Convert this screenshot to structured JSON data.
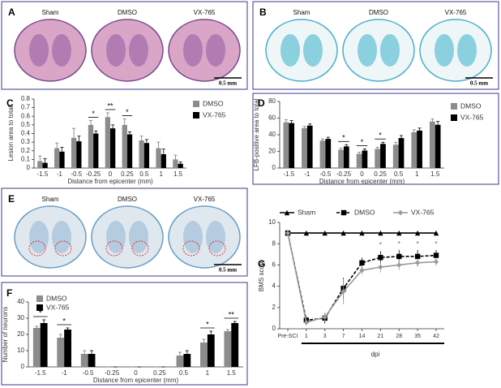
{
  "image_panels": [
    {
      "letter": "A",
      "labels": [
        "Sham",
        "DMSO",
        "VX-765"
      ],
      "scale_bar": "0.5 mm"
    },
    {
      "letter": "B",
      "labels": [
        "Sham",
        "DMSO",
        "VX-765"
      ],
      "scale_bar": "0.5 mm"
    },
    {
      "letter": "E",
      "labels": [
        "Sham",
        "DMSO",
        "VX-765"
      ],
      "scale_bar": "0.5 mm"
    }
  ],
  "chart_data": [
    {
      "type": "bar",
      "panel": "C",
      "y_label": "Lesion area to total",
      "x_label": "Distance from epicenter (mm)",
      "categories": [
        "-1.5",
        "-1",
        "-0.5",
        "-0.25",
        "0",
        "0.25",
        "0.5",
        "1",
        "1.5"
      ],
      "series": [
        {
          "name": "DMSO",
          "color": "#8c8c8c",
          "values": [
            0.08,
            0.23,
            0.35,
            0.5,
            0.59,
            0.5,
            0.32,
            0.23,
            0.1
          ],
          "errors": [
            0.06,
            0.06,
            0.11,
            0.05,
            0.05,
            0.07,
            0.05,
            0.07,
            0.05
          ]
        },
        {
          "name": "VX-765",
          "color": "#000000",
          "values": [
            0.06,
            0.19,
            0.31,
            0.4,
            0.46,
            0.39,
            0.29,
            0.16,
            0.05
          ],
          "errors": [
            0.05,
            0.05,
            0.06,
            0.03,
            0.04,
            0.03,
            0.04,
            0.06,
            0.02
          ]
        }
      ],
      "significance": [
        null,
        null,
        null,
        "*",
        "**",
        "*",
        null,
        null,
        null
      ],
      "ylim": [
        0,
        0.8
      ],
      "yticks": [
        0,
        0.1,
        0.2,
        0.3,
        0.4,
        0.5,
        0.6,
        0.7,
        0.8
      ],
      "legend": "right"
    },
    {
      "type": "bar",
      "panel": "D",
      "y_label": "LFB-positive area to total",
      "x_label": "Distance from epicenter (mm)",
      "categories": [
        "-1.5",
        "-1",
        "-0.5",
        "-0.25",
        "0",
        "0.25",
        "0.5",
        "1",
        "1.5"
      ],
      "series": [
        {
          "name": "DMSO",
          "color": "#8c8c8c",
          "values": [
            55,
            48,
            33,
            22,
            17,
            23,
            28,
            43,
            56
          ],
          "errors": [
            3,
            2,
            2,
            2,
            2,
            2,
            3,
            3,
            3
          ]
        },
        {
          "name": "VX-765",
          "color": "#000000",
          "values": [
            54,
            51,
            35,
            26,
            21,
            29,
            36,
            45,
            52
          ],
          "errors": [
            3,
            2,
            2,
            2,
            2,
            2,
            3,
            3,
            4
          ]
        }
      ],
      "significance": [
        null,
        null,
        null,
        "*",
        "*",
        "*",
        null,
        null,
        null
      ],
      "ylim": [
        0,
        80
      ],
      "yticks": [
        0,
        20,
        40,
        60,
        80
      ],
      "legend": "right"
    },
    {
      "type": "bar",
      "panel": "F",
      "y_label": "Number of neurons",
      "x_label": "Distance from epicenter (mm)",
      "categories": [
        "-1.5",
        "-1",
        "-0.5",
        "-0.25",
        "0",
        "0.25",
        "0.5",
        "1",
        "1.5"
      ],
      "series": [
        {
          "name": "DMSO",
          "color": "#8c8c8c",
          "values": [
            24,
            18,
            8,
            0,
            0,
            0,
            7,
            15,
            22
          ],
          "errors": [
            1,
            2,
            2,
            0,
            0,
            0,
            2,
            2,
            1
          ]
        },
        {
          "name": "VX-765",
          "color": "#000000",
          "values": [
            27,
            23,
            8,
            0,
            0,
            0,
            8,
            20,
            27
          ],
          "errors": [
            2,
            1,
            2,
            0,
            0,
            0,
            2,
            2,
            1
          ]
        }
      ],
      "significance": [
        "*",
        "*",
        null,
        null,
        null,
        null,
        null,
        "*",
        "**"
      ],
      "ylim": [
        0,
        40
      ],
      "yticks": [
        0,
        10,
        20,
        30,
        40
      ],
      "legend": "upper left"
    },
    {
      "type": "line",
      "panel": "G",
      "y_label": "BMS score",
      "x_label": "dpi",
      "categories": [
        "Pre-SCI",
        "1",
        "3",
        "7",
        "14",
        "21",
        "28",
        "35",
        "42"
      ],
      "series": [
        {
          "name": "Sham",
          "color": "#000000",
          "marker": "triangle",
          "linestyle": "solid",
          "values": [
            9,
            9,
            9,
            9,
            9,
            9,
            9,
            9,
            9
          ]
        },
        {
          "name": "DMSO",
          "color": "#000000",
          "marker": "square",
          "linestyle": "dashed",
          "values": [
            9,
            0.8,
            1.0,
            3.8,
            6.2,
            6.7,
            6.8,
            6.8,
            6.9
          ],
          "errors": [
            0,
            0.3,
            0.5,
            1.0,
            0.5,
            0.6,
            0.6,
            0.6,
            0.5
          ]
        },
        {
          "name": "VX-765",
          "color": "#999999",
          "marker": "diamond",
          "linestyle": "solid",
          "values": [
            9,
            0.6,
            1.1,
            3.5,
            5.5,
            5.8,
            6.0,
            6.2,
            6.3
          ],
          "errors": [
            0,
            0.3,
            0.4,
            1.2,
            0.4,
            0.5,
            0.5,
            0.4,
            0.4
          ]
        }
      ],
      "significance": [
        null,
        null,
        null,
        null,
        null,
        "*",
        "*",
        "*",
        "*"
      ],
      "ylim": [
        0,
        10
      ],
      "yticks": [
        0,
        2,
        4,
        6,
        8,
        10
      ],
      "legend": "top"
    }
  ]
}
